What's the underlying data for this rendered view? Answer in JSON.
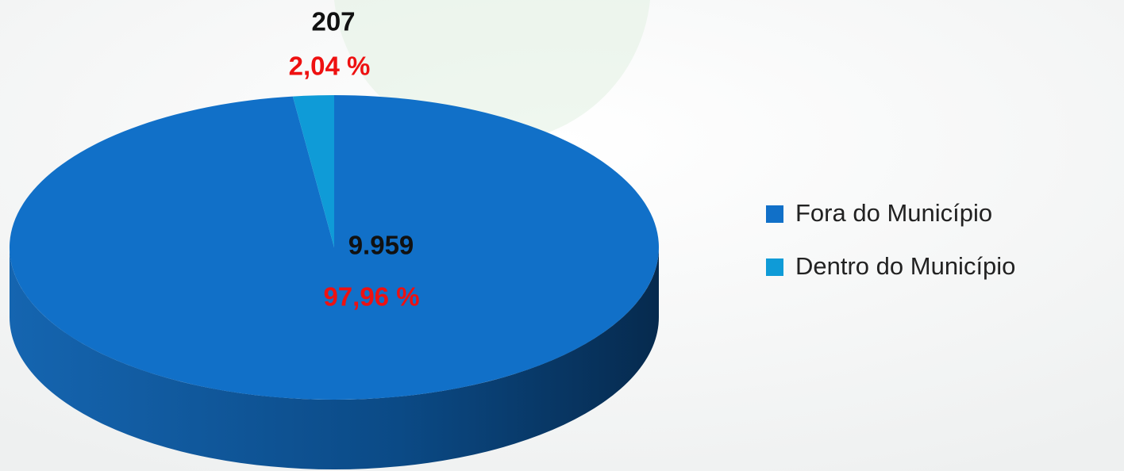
{
  "chart_data": {
    "type": "pie",
    "categories": [
      "Fora do Município",
      "Dentro do Município"
    ],
    "values": [
      9959,
      207
    ],
    "value_labels": [
      "9.959",
      "207"
    ],
    "percentages": [
      97.96,
      2.04
    ],
    "percentage_labels": [
      "97,96 %",
      "2,04 %"
    ],
    "colors": [
      "#1170c8",
      "#0f9bd7"
    ],
    "legend": "right"
  }
}
